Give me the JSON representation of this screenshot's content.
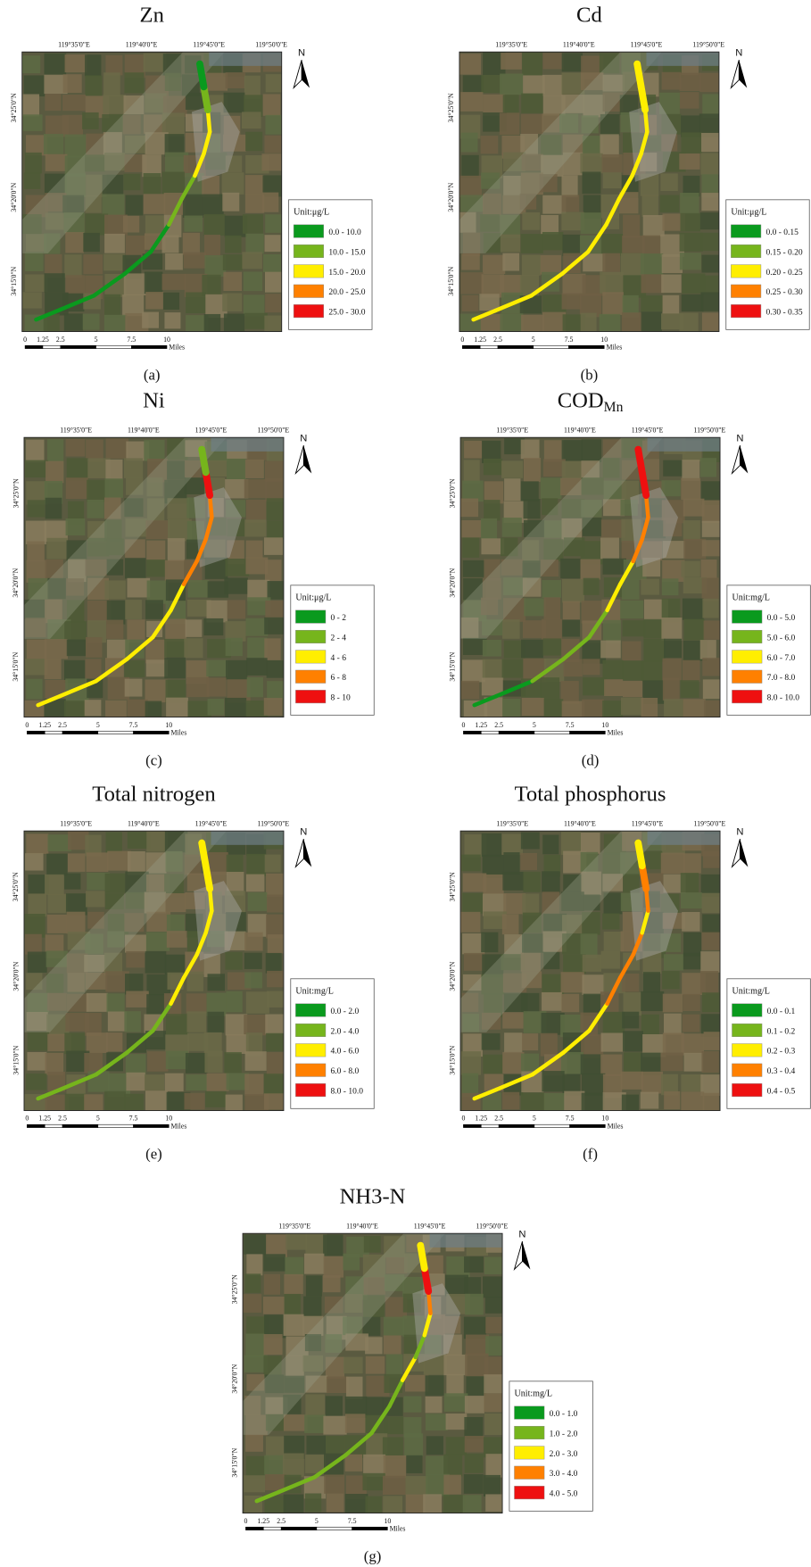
{
  "shared": {
    "lon_labels": [
      "119°35'0\"E",
      "119°40'0\"E",
      "119°45'0\"E",
      "119°50'0\"E"
    ],
    "lat_labels": [
      "34°15'0\"N",
      "34°20'0\"N",
      "34°25'0\"N"
    ],
    "scale_labels": [
      "0",
      "1.25",
      "2.5",
      "5",
      "7.5",
      "10"
    ],
    "scale_unit": "Miles",
    "north": "N",
    "legend_colors": [
      "#0a9a1e",
      "#76b51c",
      "#ffee00",
      "#ff8000",
      "#ee1010"
    ]
  },
  "panels": [
    {
      "title": "Zn",
      "unit": "Unit:μg/L",
      "classes": [
        "0.0 - 10.0",
        "10.0 - 15.0",
        "15.0 - 20.0",
        "20.0 - 25.0",
        "25.0 - 30.0"
      ],
      "caption": "(a)",
      "river_colors": [
        "#0a9a1e",
        "#0a9a1e",
        "#0a9a1e",
        "#0a9a1e",
        "#0a9a1e",
        "#76b51c",
        "#76b51c",
        "#ffee00",
        "#ffee00",
        "#ffee00",
        "#76b51c",
        "#0a9a1e"
      ]
    },
    {
      "title": "Cd",
      "unit": "Unit:μg/L",
      "classes": [
        "0.0 - 0.15",
        "0.15 - 0.20",
        "0.20 - 0.25",
        "0.25 - 0.30",
        "0.30 - 0.35"
      ],
      "caption": "(b)",
      "river_colors": [
        "#ffee00",
        "#ffee00",
        "#ffee00",
        "#ffee00",
        "#ffee00",
        "#ffee00",
        "#ffee00",
        "#ffee00",
        "#ffee00",
        "#ffee00",
        "#ffee00",
        "#ffee00"
      ]
    },
    {
      "title": "Ni",
      "unit": "Unit:μg/L",
      "classes": [
        "0 - 2",
        "2 - 4",
        "4 - 6",
        "6 - 8",
        "8 - 10"
      ],
      "caption": "(c)",
      "river_colors": [
        "#ffee00",
        "#ffee00",
        "#ffee00",
        "#ffee00",
        "#ffee00",
        "#ffee00",
        "#ff8000",
        "#ff8000",
        "#ff8000",
        "#ff8000",
        "#ee1010",
        "#76b51c"
      ]
    },
    {
      "title": "COD",
      "title_sub": "Mn",
      "unit": "Unit:mg/L",
      "classes": [
        "0.0 - 5.0",
        "5.0 - 6.0",
        "6.0 - 7.0",
        "7.0 - 8.0",
        "8.0 - 10.0"
      ],
      "caption": "(d)",
      "river_colors": [
        "#0a9a1e",
        "#0a9a1e",
        "#76b51c",
        "#76b51c",
        "#76b51c",
        "#ffee00",
        "#ffee00",
        "#ff8000",
        "#ff8000",
        "#ff8000",
        "#ee1010",
        "#ee1010"
      ]
    },
    {
      "title": "Total  nitrogen",
      "unit": "Unit:mg/L",
      "classes": [
        "0.0 - 2.0",
        "2.0 - 4.0",
        "4.0 - 6.0",
        "6.0 - 8.0",
        "8.0 - 10.0"
      ],
      "caption": "(e)",
      "river_colors": [
        "#76b51c",
        "#76b51c",
        "#76b51c",
        "#76b51c",
        "#76b51c",
        "#ffee00",
        "#ffee00",
        "#ffee00",
        "#ffee00",
        "#ffee00",
        "#ffee00",
        "#ffee00"
      ]
    },
    {
      "title": "Total phosphorus",
      "unit": "Unit:mg/L",
      "classes": [
        "0.0 - 0.1",
        "0.1 - 0.2",
        "0.2 - 0.3",
        "0.3 - 0.4",
        "0.4 - 0.5"
      ],
      "caption": "(f)",
      "river_colors": [
        "#ffee00",
        "#ffee00",
        "#ffee00",
        "#ffee00",
        "#ffee00",
        "#ff8000",
        "#ff8000",
        "#ff8000",
        "#ffee00",
        "#ff8000",
        "#ff8000",
        "#ffee00"
      ]
    },
    {
      "title": "NH3-N",
      "unit": "Unit:mg/L",
      "classes": [
        "0.0 - 1.0",
        "1.0 - 2.0",
        "2.0 - 3.0",
        "3.0 - 4.0",
        "4.0 - 5.0"
      ],
      "caption": "(g)",
      "river_colors": [
        "#76b51c",
        "#76b51c",
        "#76b51c",
        "#76b51c",
        "#76b51c",
        "#76b51c",
        "#ffee00",
        "#76b51c",
        "#ffee00",
        "#ff8000",
        "#ee1010",
        "#ffee00"
      ]
    }
  ]
}
